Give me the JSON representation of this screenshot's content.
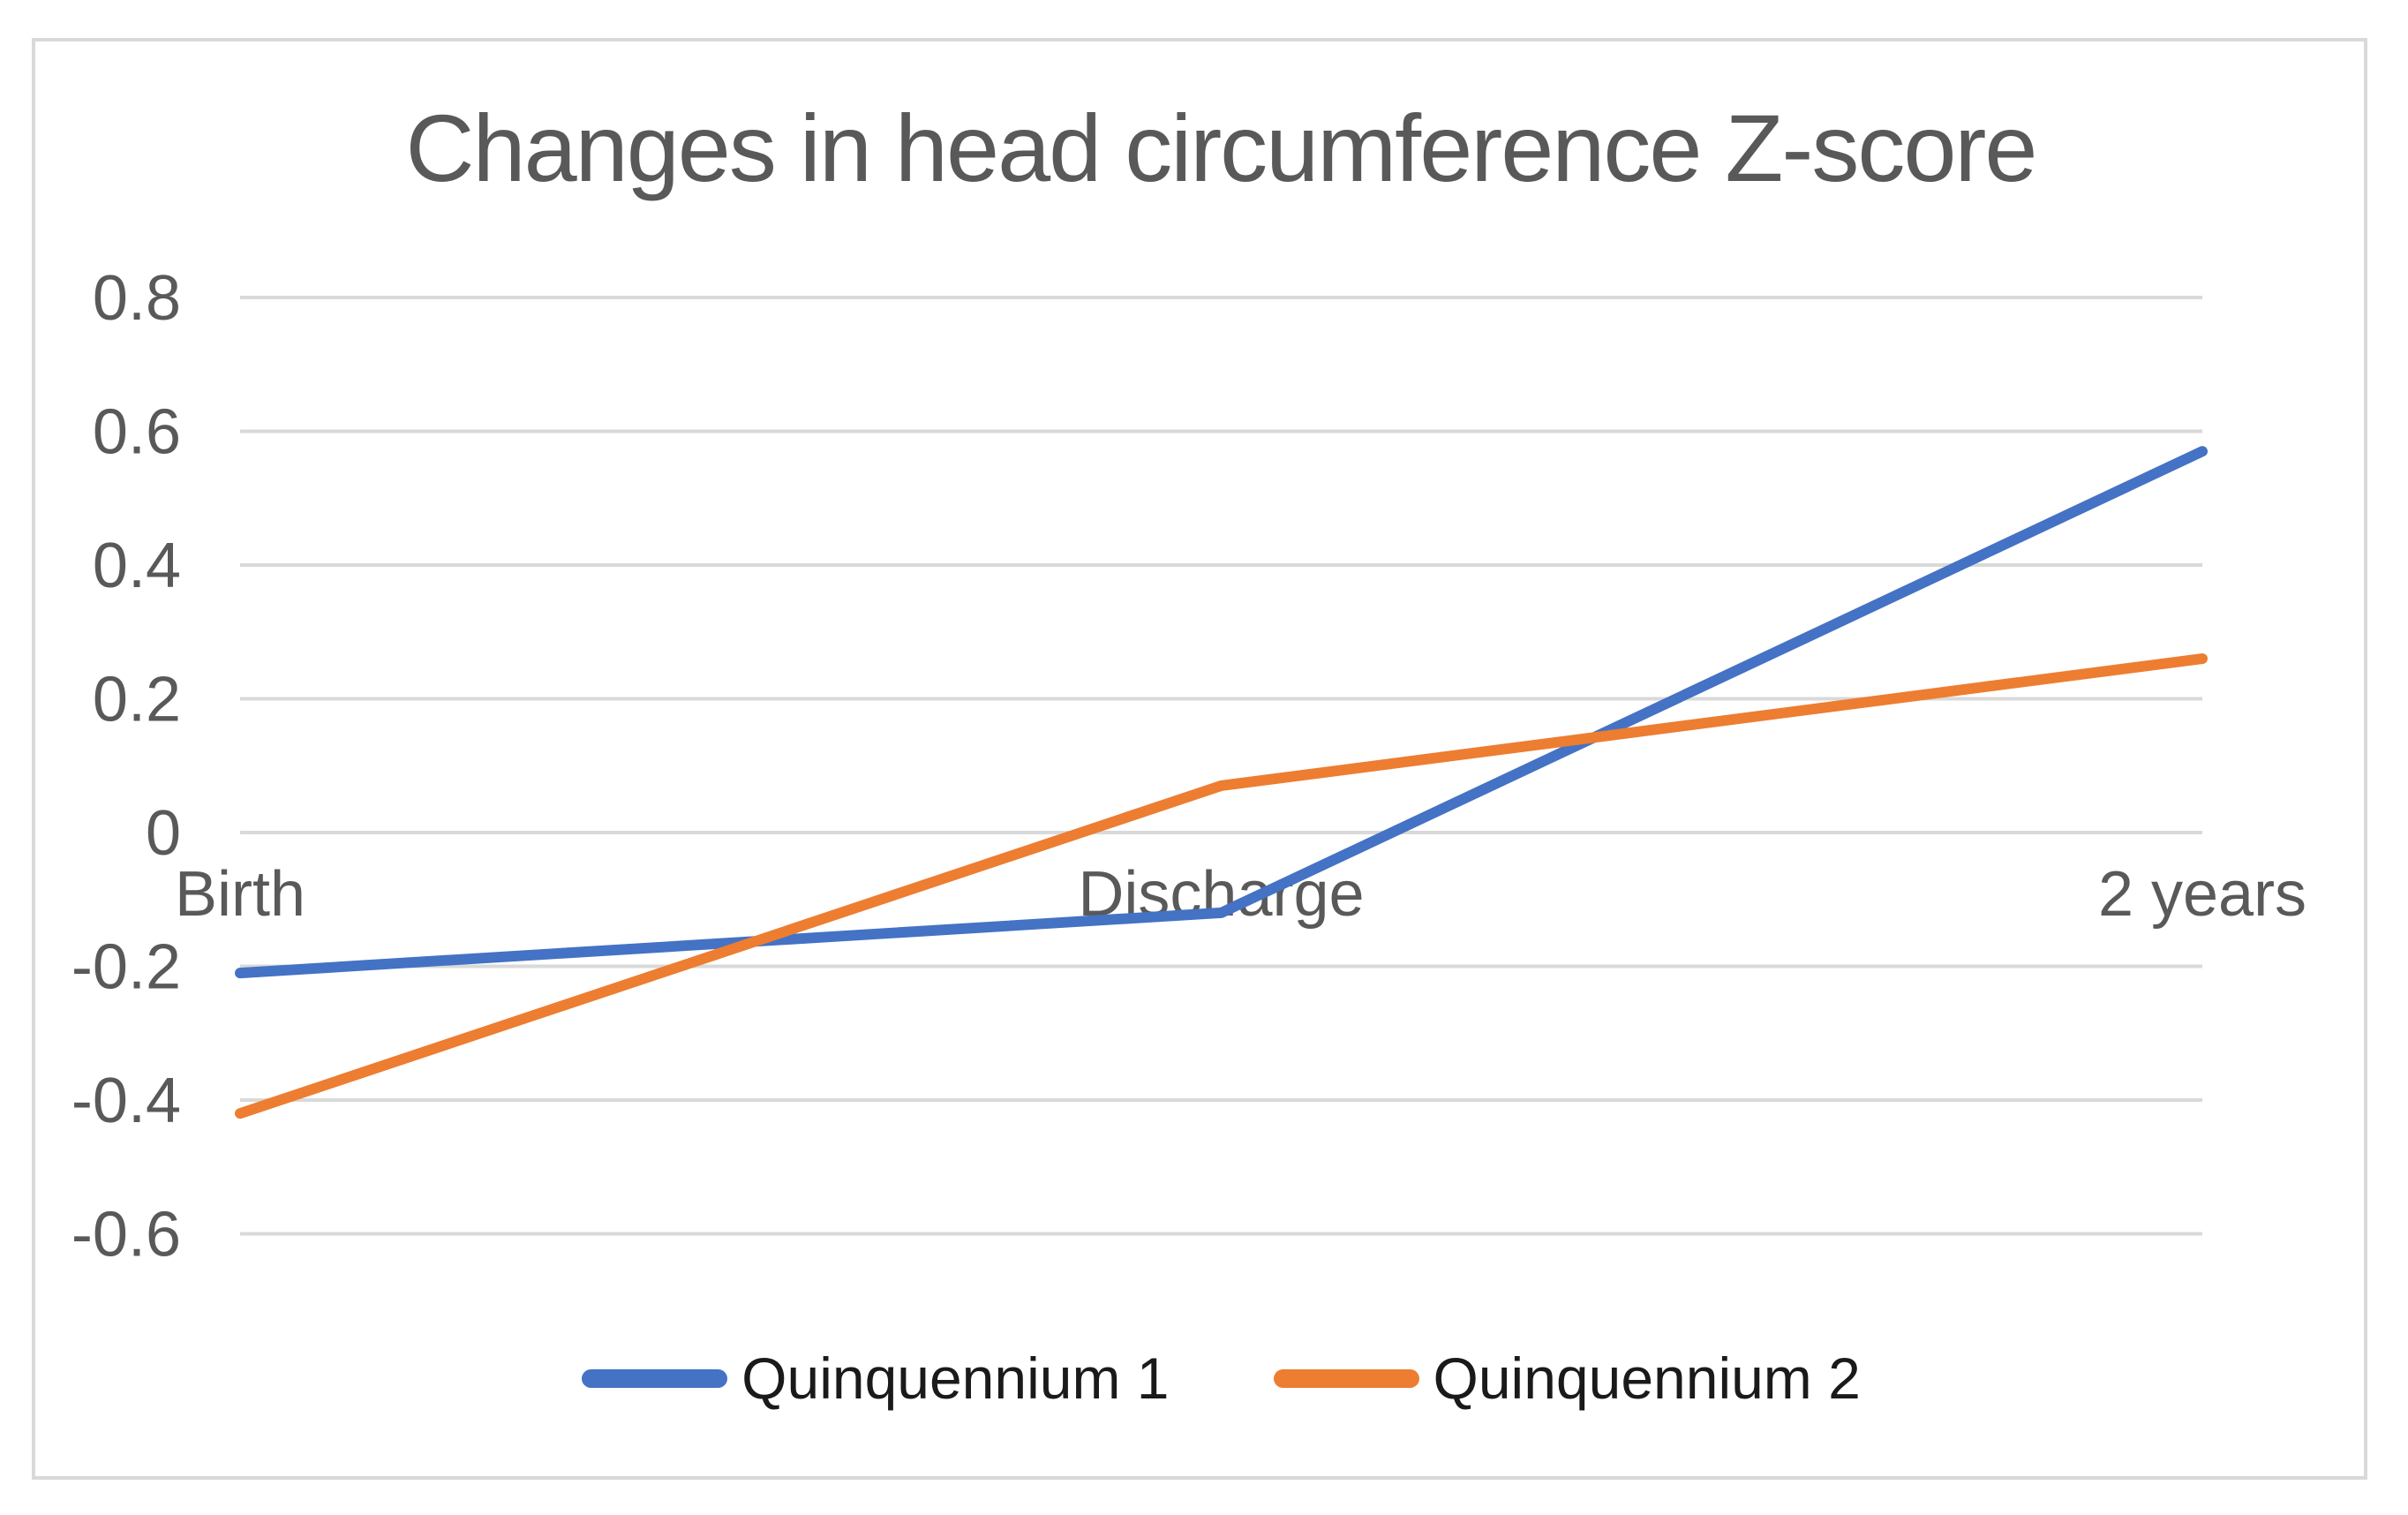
{
  "title": "Changes in head circumference Z-score",
  "colors": {
    "background": "#FFFFFF",
    "frame_border": "#D9D9D9",
    "gridline": "#D9D9D9",
    "title_text": "#595959",
    "axis_text": "#595959",
    "legend_text": "#1A1A1A",
    "series1": "#4472C4",
    "series2": "#ED7D31"
  },
  "chart_data": {
    "type": "line",
    "title": "Changes in head circumference Z-score",
    "categories": [
      "Birth",
      "Discharge",
      "2 years"
    ],
    "series": [
      {
        "name": "Quinquennium 1",
        "color": "#4472C4",
        "values": [
          -0.21,
          -0.12,
          0.57
        ]
      },
      {
        "name": "Quinquennium 2",
        "color": "#ED7D31",
        "values": [
          -0.42,
          0.07,
          0.26
        ]
      }
    ],
    "ylim": [
      -0.6,
      0.8
    ],
    "ytick_step": 0.2,
    "yticks": [
      0.8,
      0.6,
      0.4,
      0.2,
      0,
      -0.2,
      -0.4,
      -0.6
    ],
    "ytick_labels": [
      "0.8",
      "0.6",
      "0.4",
      "0.2",
      "0",
      "-0.2",
      "-0.4",
      "-0.6"
    ],
    "xlabel": "",
    "ylabel": "",
    "grid": true,
    "legend_position": "bottom"
  }
}
